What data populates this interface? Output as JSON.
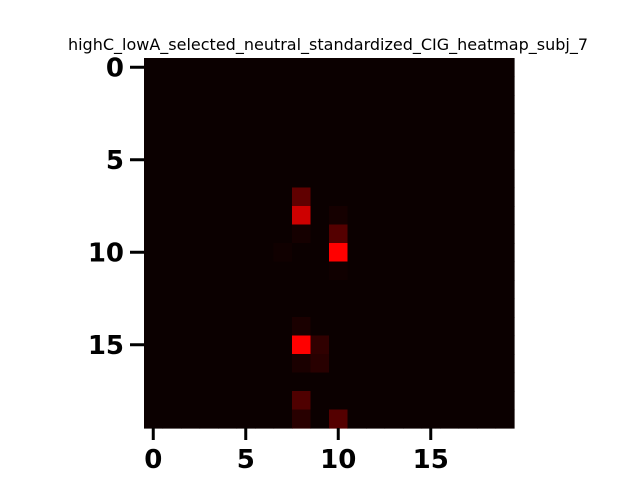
{
  "chart_data": {
    "type": "heatmap",
    "title": "highC_lowA_selected_neutral_standardized_CIG_heatmap_subj_7",
    "xlabel": "",
    "ylabel": "",
    "xlim": [
      -0.5,
      19.5
    ],
    "ylim": [
      19.5,
      -0.5
    ],
    "xticks": [
      0,
      5,
      10,
      15
    ],
    "yticks": [
      0,
      5,
      10,
      15
    ],
    "grid": false,
    "colormap": {
      "low": "#0b0000",
      "high": "#ff0000"
    },
    "rows": 20,
    "cols": 20,
    "values": [
      [
        0.0,
        0.0,
        0.0,
        0.0,
        0.0,
        0.0,
        0.0,
        0.0,
        0.0,
        0.0,
        0.0,
        0.0,
        0.0,
        0.0,
        0.0,
        0.0,
        0.0,
        0.0,
        0.0,
        0.0
      ],
      [
        0.0,
        0.0,
        0.0,
        0.0,
        0.0,
        0.0,
        0.0,
        0.0,
        0.0,
        0.0,
        0.0,
        0.0,
        0.0,
        0.0,
        0.0,
        0.0,
        0.0,
        0.0,
        0.0,
        0.0
      ],
      [
        0.0,
        0.0,
        0.0,
        0.0,
        0.0,
        0.0,
        0.0,
        0.0,
        0.0,
        0.0,
        0.0,
        0.0,
        0.0,
        0.0,
        0.0,
        0.0,
        0.0,
        0.0,
        0.0,
        0.0
      ],
      [
        0.0,
        0.0,
        0.0,
        0.0,
        0.0,
        0.0,
        0.0,
        0.0,
        0.0,
        0.0,
        0.0,
        0.0,
        0.0,
        0.0,
        0.0,
        0.0,
        0.0,
        0.0,
        0.0,
        0.0
      ],
      [
        0.0,
        0.0,
        0.0,
        0.0,
        0.0,
        0.0,
        0.0,
        0.0,
        0.0,
        0.0,
        0.0,
        0.0,
        0.0,
        0.0,
        0.0,
        0.0,
        0.0,
        0.0,
        0.0,
        0.0
      ],
      [
        0.0,
        0.0,
        0.0,
        0.0,
        0.0,
        0.0,
        0.0,
        0.0,
        0.0,
        0.0,
        0.0,
        0.0,
        0.0,
        0.0,
        0.0,
        0.0,
        0.0,
        0.0,
        0.0,
        0.0
      ],
      [
        0.0,
        0.0,
        0.0,
        0.0,
        0.0,
        0.0,
        0.0,
        0.0,
        0.0,
        0.0,
        0.0,
        0.0,
        0.0,
        0.0,
        0.0,
        0.0,
        0.0,
        0.0,
        0.0,
        0.0
      ],
      [
        0.0,
        0.0,
        0.0,
        0.0,
        0.0,
        0.0,
        0.0,
        0.0,
        0.35,
        0.0,
        0.0,
        0.0,
        0.0,
        0.0,
        0.0,
        0.0,
        0.0,
        0.0,
        0.0,
        0.0
      ],
      [
        0.0,
        0.0,
        0.0,
        0.0,
        0.0,
        0.0,
        0.0,
        0.0,
        0.8,
        0.0,
        0.04,
        0.0,
        0.0,
        0.0,
        0.0,
        0.0,
        0.0,
        0.0,
        0.0,
        0.0
      ],
      [
        0.0,
        0.0,
        0.0,
        0.0,
        0.0,
        0.0,
        0.0,
        0.0,
        0.04,
        0.0,
        0.3,
        0.0,
        0.0,
        0.0,
        0.0,
        0.0,
        0.0,
        0.0,
        0.0,
        0.0
      ],
      [
        0.0,
        0.0,
        0.0,
        0.0,
        0.0,
        0.0,
        0.0,
        0.02,
        0.0,
        0.0,
        1.0,
        0.0,
        0.0,
        0.0,
        0.0,
        0.0,
        0.0,
        0.0,
        0.0,
        0.0
      ],
      [
        0.0,
        0.0,
        0.0,
        0.0,
        0.0,
        0.0,
        0.0,
        0.0,
        0.0,
        0.0,
        0.02,
        0.0,
        0.0,
        0.0,
        0.0,
        0.0,
        0.0,
        0.0,
        0.0,
        0.0
      ],
      [
        0.0,
        0.0,
        0.0,
        0.0,
        0.0,
        0.0,
        0.0,
        0.0,
        0.0,
        0.0,
        0.0,
        0.0,
        0.0,
        0.0,
        0.0,
        0.0,
        0.0,
        0.0,
        0.0,
        0.0
      ],
      [
        0.0,
        0.0,
        0.0,
        0.0,
        0.0,
        0.0,
        0.0,
        0.0,
        0.0,
        0.0,
        0.0,
        0.0,
        0.0,
        0.0,
        0.0,
        0.0,
        0.0,
        0.0,
        0.0,
        0.0
      ],
      [
        0.0,
        0.0,
        0.0,
        0.0,
        0.0,
        0.0,
        0.0,
        0.0,
        0.06,
        0.0,
        0.0,
        0.0,
        0.0,
        0.0,
        0.0,
        0.0,
        0.0,
        0.0,
        0.0,
        0.0
      ],
      [
        0.0,
        0.0,
        0.0,
        0.0,
        0.0,
        0.0,
        0.0,
        0.0,
        1.0,
        0.15,
        0.0,
        0.0,
        0.0,
        0.0,
        0.0,
        0.0,
        0.0,
        0.0,
        0.0,
        0.0
      ],
      [
        0.0,
        0.0,
        0.0,
        0.0,
        0.0,
        0.0,
        0.0,
        0.0,
        0.06,
        0.12,
        0.0,
        0.0,
        0.0,
        0.0,
        0.0,
        0.0,
        0.0,
        0.0,
        0.0,
        0.0
      ],
      [
        0.0,
        0.0,
        0.0,
        0.0,
        0.0,
        0.0,
        0.0,
        0.0,
        0.0,
        0.0,
        0.0,
        0.0,
        0.0,
        0.0,
        0.0,
        0.0,
        0.0,
        0.0,
        0.0,
        0.0
      ],
      [
        0.0,
        0.0,
        0.0,
        0.0,
        0.0,
        0.0,
        0.0,
        0.0,
        0.28,
        0.0,
        0.0,
        0.0,
        0.0,
        0.0,
        0.0,
        0.0,
        0.0,
        0.0,
        0.0,
        0.0
      ],
      [
        0.0,
        0.0,
        0.0,
        0.0,
        0.0,
        0.0,
        0.0,
        0.0,
        0.12,
        0.0,
        0.3,
        0.0,
        0.0,
        0.0,
        0.0,
        0.0,
        0.0,
        0.0,
        0.0,
        0.0
      ]
    ]
  }
}
